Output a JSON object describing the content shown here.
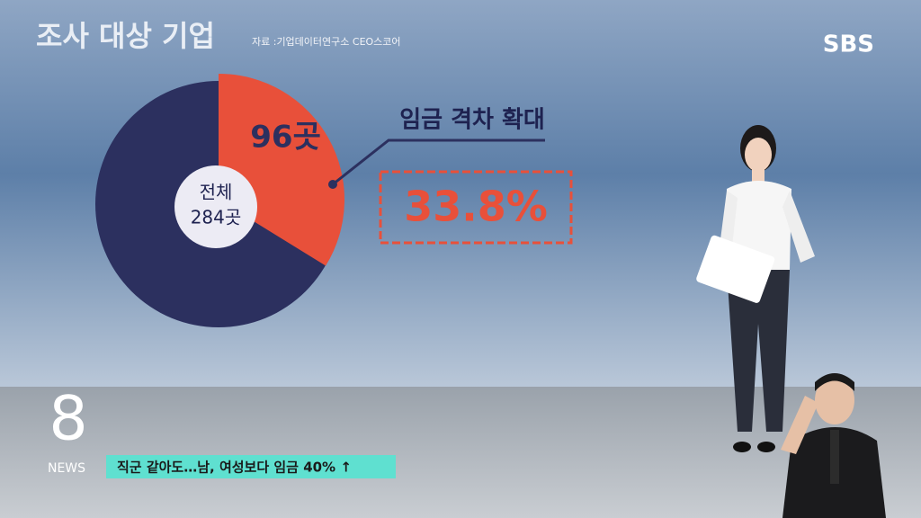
{
  "chart_data": {
    "type": "pie",
    "title": "조사 대상 기업",
    "source": "자료 :기업데이터연구소 CEO스코어",
    "values": [
      96
    ],
    "value_labels": [
      "96곳"
    ],
    "colors": [
      "#e8503a"
    ],
    "total": 284,
    "total_name": "전체",
    "total_label": "284곳",
    "base_color": "#2c305f",
    "annotation": "임금 격차 확대",
    "highlight": "33.8%"
  },
  "broadcast": {
    "logo": "SBS",
    "channel_mark": "8",
    "channel_name": "NEWS",
    "ticker": "직군 같아도…남, 여성보다 임금 40% ↑"
  }
}
